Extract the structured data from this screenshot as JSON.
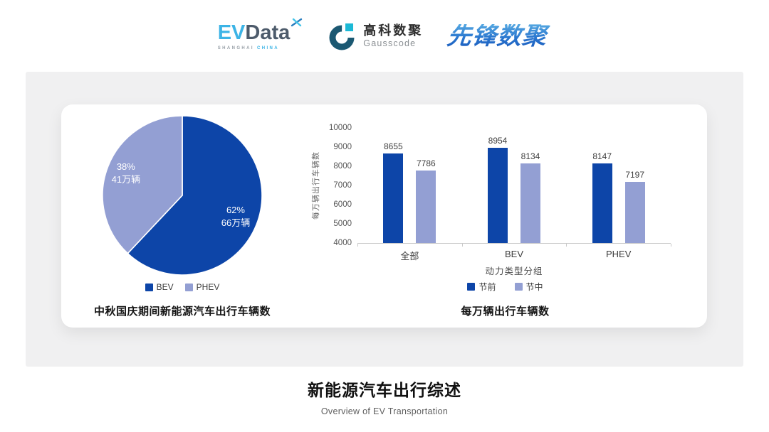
{
  "header": {
    "evdata": {
      "part1": "EV",
      "part2": "Data",
      "sub1": "SHANGHAI",
      "sub2": "CHINA"
    },
    "gausscode": {
      "cn": "高科数聚",
      "en": "Gausscode"
    },
    "xianfeng": "先锋数聚"
  },
  "colors": {
    "primary_blue": "#0d45a8",
    "secondary_periwinkle": "#939fd3",
    "evdata_blue": "#3cb4e6",
    "evdata_dark": "#4d5b6b",
    "gausscode_teal": "#1cb9d6",
    "gausscode_navy": "#1b5872",
    "axis_gray": "#c9c9c9"
  },
  "chart_data": [
    {
      "type": "pie",
      "title": "中秋国庆期间新能源汽车出行车辆数",
      "labels": [
        "BEV",
        "PHEV"
      ],
      "values": [
        62,
        38
      ],
      "slice_labels": [
        [
          "62%",
          "66万辆"
        ],
        [
          "38%",
          "41万辆"
        ]
      ],
      "colors": [
        "#0d45a8",
        "#939fd3"
      ],
      "legend_position": "bottom",
      "start_angle_deg": 0,
      "direction": "clockwise"
    },
    {
      "type": "bar",
      "title": "每万辆出行车辆数",
      "categories": [
        "全部",
        "BEV",
        "PHEV"
      ],
      "series": [
        {
          "name": "节前",
          "values": [
            8655,
            8954,
            8147
          ],
          "color": "#0d45a8"
        },
        {
          "name": "节中",
          "values": [
            7786,
            8134,
            7197
          ],
          "color": "#939fd3"
        }
      ],
      "ylabel": "每万辆出行车辆数",
      "xlabel": "动力类型分组",
      "ylim": [
        4000,
        10000
      ],
      "yticks": [
        4000,
        5000,
        6000,
        7000,
        8000,
        9000,
        10000
      ],
      "grid": false,
      "legend_position": "bottom",
      "data_labels": true
    }
  ],
  "footer": {
    "title": "新能源汽车出行综述",
    "subtitle": "Overview of EV Transportation"
  }
}
